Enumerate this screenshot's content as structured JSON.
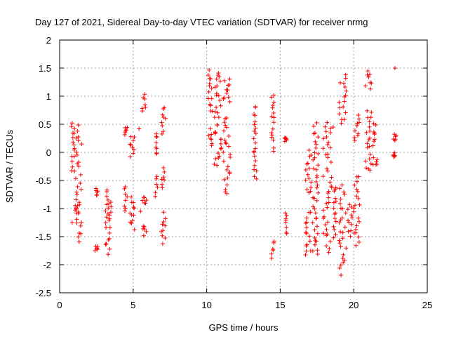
{
  "chart_data": {
    "type": "scatter",
    "title": "Day 127 of 2021, Sidereal Day-to-day VTEC variation (SDTVAR) for receiver nrmg",
    "xlabel": "GPS time / hours",
    "ylabel": "SDTVAR / TECUs",
    "xlim": [
      0,
      25
    ],
    "ylim": [
      -2.5,
      2
    ],
    "xticks": [
      0,
      5,
      10,
      15,
      20,
      25
    ],
    "xtick_labels": [
      "0",
      "5",
      "10",
      "15",
      "20",
      "25"
    ],
    "yticks": [
      -2.5,
      -2,
      -1.5,
      -1,
      -0.5,
      0,
      0.5,
      1,
      1.5,
      2
    ],
    "ytick_labels": [
      "-2.5",
      "-2",
      "-1.5",
      "-1",
      "-0.5",
      "0",
      "0.5",
      "1",
      "1.5",
      "2"
    ],
    "grid": true,
    "marker": "+",
    "color": "#ff0000",
    "segments": [
      {
        "x": [
          0.8,
          1.0
        ],
        "y": [
          0.5,
          -0.3
        ]
      },
      {
        "x": [
          1.0,
          1.5
        ],
        "y": [
          0.5,
          -1.6
        ]
      },
      {
        "x": [
          1.05,
          1.35
        ],
        "y": [
          -0.9,
          -1.1
        ]
      },
      {
        "x": [
          2.4,
          2.6
        ],
        "y": [
          -0.65,
          -0.75
        ]
      },
      {
        "x": [
          2.4,
          2.6
        ],
        "y": [
          -1.65,
          -1.75
        ]
      },
      {
        "x": [
          3.1,
          3.5
        ],
        "y": [
          -0.65,
          -1.8
        ]
      },
      {
        "x": [
          3.3,
          3.5
        ],
        "y": [
          -0.9,
          -1.2
        ]
      },
      {
        "x": [
          4.4,
          4.6
        ],
        "y": [
          0.45,
          0.35
        ]
      },
      {
        "x": [
          4.4,
          4.6
        ],
        "y": [
          -0.6,
          -1.05
        ]
      },
      {
        "x": [
          4.7,
          5.1
        ],
        "y": [
          0.3,
          -0.05
        ]
      },
      {
        "x": [
          4.7,
          5.1
        ],
        "y": [
          -0.8,
          -1.35
        ]
      },
      {
        "x": [
          5.6,
          5.9
        ],
        "y": [
          1.0,
          0.75
        ]
      },
      {
        "x": [
          5.6,
          5.9
        ],
        "y": [
          -0.8,
          -0.9
        ]
      },
      {
        "x": [
          5.6,
          5.9
        ],
        "y": [
          -1.3,
          -1.45
        ]
      },
      {
        "x": [
          6.5,
          6.7
        ],
        "y": [
          0.35,
          -0.05
        ]
      },
      {
        "x": [
          6.5,
          6.7
        ],
        "y": [
          -0.45,
          -0.75
        ]
      },
      {
        "x": [
          6.9,
          7.2
        ],
        "y": [
          0.8,
          0.35
        ]
      },
      {
        "x": [
          6.9,
          7.2
        ],
        "y": [
          -0.3,
          -0.6
        ]
      },
      {
        "x": [
          6.9,
          7.2
        ],
        "y": [
          -1.1,
          -1.6
        ]
      },
      {
        "x": [
          10.1,
          10.4
        ],
        "y": [
          1.45,
          0.7
        ]
      },
      {
        "x": [
          10.1,
          10.4
        ],
        "y": [
          0.4,
          0.15
        ]
      },
      {
        "x": [
          10.5,
          11.0
        ],
        "y": [
          1.45,
          0.6
        ]
      },
      {
        "x": [
          10.5,
          11.0
        ],
        "y": [
          0.5,
          -0.25
        ]
      },
      {
        "x": [
          11.1,
          11.6
        ],
        "y": [
          1.3,
          0.9
        ]
      },
      {
        "x": [
          11.1,
          11.6
        ],
        "y": [
          0.65,
          -0.75
        ]
      },
      {
        "x": [
          13.2,
          13.4
        ],
        "y": [
          0.85,
          -0.5
        ]
      },
      {
        "x": [
          14.4,
          14.6
        ],
        "y": [
          1.05,
          0.05
        ]
      },
      {
        "x": [
          14.4,
          14.6
        ],
        "y": [
          -1.6,
          -1.85
        ]
      },
      {
        "x": [
          15.3,
          15.5
        ],
        "y": [
          0.28,
          0.22
        ]
      },
      {
        "x": [
          15.3,
          15.5
        ],
        "y": [
          -1.05,
          -1.45
        ]
      },
      {
        "x": [
          16.7,
          17.1
        ],
        "y": [
          0.0,
          -0.75
        ]
      },
      {
        "x": [
          16.7,
          17.1
        ],
        "y": [
          -1.05,
          -1.85
        ]
      },
      {
        "x": [
          17.2,
          17.6
        ],
        "y": [
          0.5,
          -0.5
        ]
      },
      {
        "x": [
          17.2,
          17.6
        ],
        "y": [
          -0.6,
          -1.85
        ]
      },
      {
        "x": [
          17.9,
          18.5
        ],
        "y": [
          0.5,
          -0.15
        ]
      },
      {
        "x": [
          17.9,
          18.5
        ],
        "y": [
          -0.3,
          -1.75
        ]
      },
      {
        "x": [
          18.6,
          18.8
        ],
        "y": [
          -0.6,
          -1.5
        ]
      },
      {
        "x": [
          19.0,
          19.5
        ],
        "y": [
          1.35,
          0.5
        ]
      },
      {
        "x": [
          19.0,
          19.5
        ],
        "y": [
          -0.6,
          -2.15
        ]
      },
      {
        "x": [
          19.6,
          19.9
        ],
        "y": [
          -0.9,
          -1.5
        ]
      },
      {
        "x": [
          20.0,
          20.4
        ],
        "y": [
          0.65,
          0.2
        ]
      },
      {
        "x": [
          20.0,
          20.4
        ],
        "y": [
          -0.4,
          -1.65
        ]
      },
      {
        "x": [
          20.8,
          21.2
        ],
        "y": [
          1.45,
          1.15
        ]
      },
      {
        "x": [
          20.8,
          21.2
        ],
        "y": [
          0.75,
          0.0
        ]
      },
      {
        "x": [
          20.8,
          21.2
        ],
        "y": [
          -0.15,
          -0.3
        ]
      },
      {
        "x": [
          21.3,
          21.6
        ],
        "y": [
          0.5,
          0.15
        ]
      },
      {
        "x": [
          21.3,
          21.6
        ],
        "y": [
          -0.1,
          -0.25
        ]
      },
      {
        "x": [
          22.7,
          22.9
        ],
        "y": [
          0.35,
          0.2
        ]
      },
      {
        "x": [
          22.7,
          22.9
        ],
        "y": [
          -0.02,
          -0.06
        ]
      }
    ],
    "extra_points": [
      {
        "x": 0.85,
        "y": -1.25
      },
      {
        "x": 5.4,
        "y": 0.42
      },
      {
        "x": 5.5,
        "y": -1.05
      },
      {
        "x": 22.8,
        "y": 1.5
      },
      {
        "x": 18.6,
        "y": 0.45
      },
      {
        "x": 15.3,
        "y": 0.25
      }
    ]
  }
}
